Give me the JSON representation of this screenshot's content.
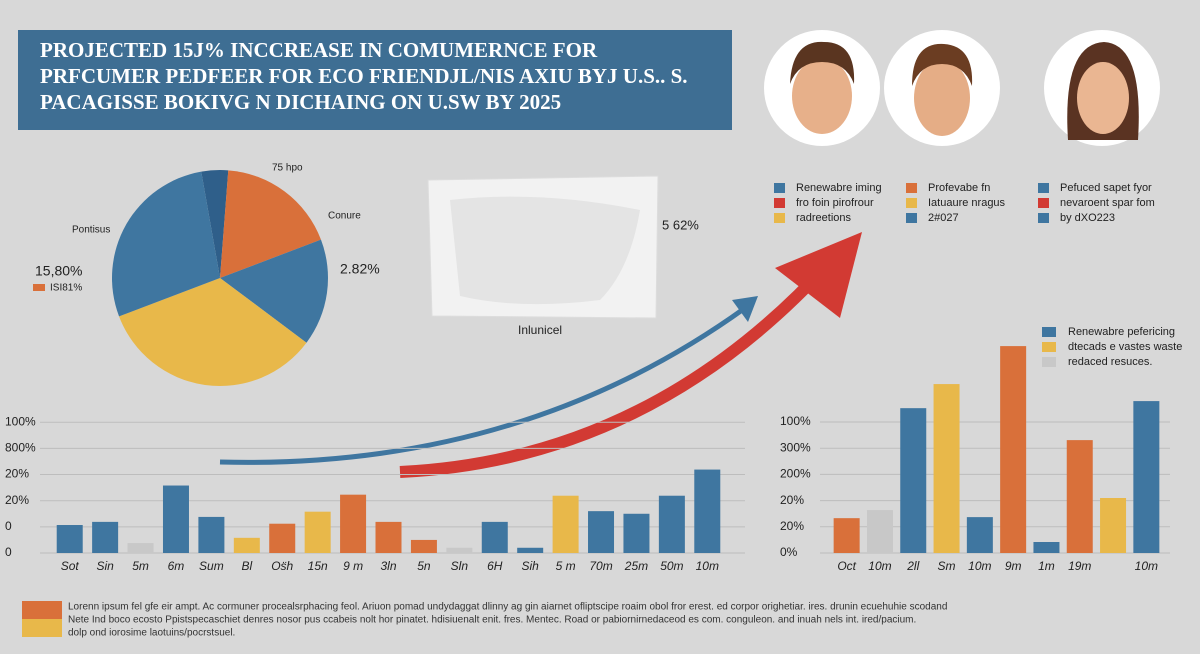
{
  "header": {
    "title_lines": [
      "PROJECTED 15J% INCCREASE IN COMUMERNCE FOR",
      "PRFCUMER PEDFEER FOR ECO FRIENDJL/NIS AXIU BYJ U.S.. S.",
      "PACAGISSE BOKIVG N DICHAING ON U.SW BY 2025"
    ]
  },
  "top_legend": [
    {
      "label": "Renewabre iming",
      "color": "#3f76a0"
    },
    {
      "label": "fro foin pirofrour",
      "color": "#d23a33"
    },
    {
      "label": "radreetions",
      "color": "#e8b84a"
    },
    {
      "label": "Profevabe fn",
      "color": "#d9703a"
    },
    {
      "label": "Iatuaure nragus",
      "color": "#e8b84a"
    },
    {
      "label": "2#027",
      "color": "#3f76a0"
    },
    {
      "label": "Pefuced sapet fyor",
      "color": "#3f76a0"
    },
    {
      "label": "nevaroent spar fom",
      "color": "#d23a33"
    },
    {
      "label": "by dXO223",
      "color": "#3f76a0"
    }
  ],
  "image_labels": [
    "5 62%",
    "Inlunicel"
  ],
  "chart_data": [
    {
      "type": "pie",
      "values": [
        4,
        18,
        16,
        34,
        28
      ],
      "colors": [
        "#2f5f8a",
        "#d9703a",
        "#3f76a0",
        "#e8b84a",
        "#3f76a0"
      ],
      "annotations": [
        "75 hpo",
        "Conure",
        "Pontisus",
        "15,80%",
        "ISI81%",
        "2.82%"
      ]
    },
    {
      "type": "bar",
      "categories": [
        "Sot",
        "Sin",
        "5m",
        "6m",
        "Sum",
        "Bl",
        "Os̈h",
        "15n",
        "9 m",
        "3ln",
        "5n",
        "Sln",
        "6H",
        "Sih",
        "5 m",
        "70m",
        "25m",
        "50m",
        "10m"
      ],
      "values": [
        1.07,
        1.19,
        0.38,
        2.58,
        1.38,
        0.58,
        1.12,
        1.58,
        2.23,
        1.19,
        0.5,
        0.2,
        1.19,
        0.2,
        2.19,
        1.6,
        1.5,
        2.19,
        3.19
      ],
      "colors": [
        "#3f76a0",
        "#3f76a0",
        "#c8c8c8",
        "#3f76a0",
        "#3f76a0",
        "#e8b84a",
        "#d9703a",
        "#e8b84a",
        "#d9703a",
        "#d9703a",
        "#d9703a",
        "#c8c8c8",
        "#3f76a0",
        "#3f76a0",
        "#e8b84a",
        "#3f76a0",
        "#3f76a0",
        "#3f76a0",
        "#3f76a0"
      ],
      "ylim": [
        0,
        5.2
      ],
      "yticks": [
        {
          "value": 0,
          "label": "0"
        },
        {
          "value": 1,
          "label": "0"
        },
        {
          "value": 2,
          "label": "20%"
        },
        {
          "value": 3,
          "label": "20%"
        },
        {
          "value": 4,
          "label": "800%"
        },
        {
          "value": 5,
          "label": "100%"
        }
      ],
      "grid": true
    },
    {
      "type": "bar",
      "categories": [
        "Oct",
        "10m",
        "2ll",
        "Sm",
        "10m",
        "9m",
        "1m",
        "19m",
        null,
        "10m"
      ],
      "values": [
        1.33,
        1.64,
        5.53,
        6.45,
        1.37,
        7.9,
        0.42,
        4.31,
        2.1,
        5.8
      ],
      "colors": [
        "#d9703a",
        "#c8c8c8",
        "#3f76a0",
        "#e8b84a",
        "#3f76a0",
        "#d9703a",
        "#3f76a0",
        "#d9703a",
        "#e8b84a",
        "#3f76a0"
      ],
      "ylim": [
        0,
        8.4
      ],
      "yticks": [
        {
          "value": 0,
          "label": "0%"
        },
        {
          "value": 1,
          "label": "20%"
        },
        {
          "value": 2,
          "label": "20%"
        },
        {
          "value": 3,
          "label": "200%"
        },
        {
          "value": 4,
          "label": "300%"
        },
        {
          "value": 5,
          "label": "100%"
        }
      ],
      "grid": true,
      "legend_items": [
        {
          "label": "Renewabre pefericing",
          "color": "#3f76a0"
        },
        {
          "label": "dtecads e vastes waste",
          "color": "#e8b84a"
        },
        {
          "label": "redaced resuces.",
          "color": "#c8c8c8"
        }
      ]
    }
  ],
  "footer": {
    "lines": [
      "Lorenn ipsum fel gfe eir ampt. Ac cormuner procealsrphacing feol. Ariuon pomad undydaggat dlinny ag gin aiarnet ofliptscipe roaim obol fror erest. ed corpor orighetiar. ires. drunin ecuehuhie scodand",
      "Nete Ind boco ecosto Ppistspecaschiet denres nosor pus ccabeis nolt hor pinatet. hdisiuenalt enit. fres. Mentec. Road or pabiornirnedaceod es com. conguleon. and inuah nels int. ired/pacium.",
      "dolp ond iorosime laotuins/pocrstsuel."
    ],
    "colors": [
      "#d9703a",
      "#e8b84a"
    ]
  }
}
